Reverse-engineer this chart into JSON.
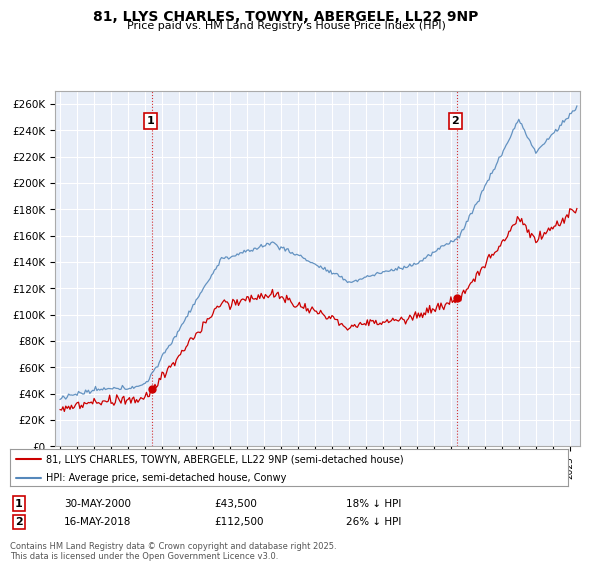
{
  "title": "81, LLYS CHARLES, TOWYN, ABERGELE, LL22 9NP",
  "subtitle": "Price paid vs. HM Land Registry's House Price Index (HPI)",
  "ylim": [
    0,
    270000
  ],
  "yticks": [
    0,
    20000,
    40000,
    60000,
    80000,
    100000,
    120000,
    140000,
    160000,
    180000,
    200000,
    220000,
    240000,
    260000
  ],
  "ytick_labels": [
    "£0",
    "£20K",
    "£40K",
    "£60K",
    "£80K",
    "£100K",
    "£120K",
    "£140K",
    "£160K",
    "£180K",
    "£200K",
    "£220K",
    "£240K",
    "£260K"
  ],
  "hpi_color": "#5588bb",
  "price_color": "#cc0000",
  "marker_color": "#cc0000",
  "vline_color": "#cc0000",
  "annotation_box_color": "#cc0000",
  "sale1_year": 2000.41,
  "sale1_price": 43500,
  "sale1_label": "1",
  "sale2_year": 2018.37,
  "sale2_price": 112500,
  "sale2_label": "2",
  "legend_line1": "81, LLYS CHARLES, TOWYN, ABERGELE, LL22 9NP (semi-detached house)",
  "legend_line2": "HPI: Average price, semi-detached house, Conwy",
  "footnote": "Contains HM Land Registry data © Crown copyright and database right 2025.\nThis data is licensed under the Open Government Licence v3.0.",
  "table_row1": [
    "1",
    "30-MAY-2000",
    "£43,500",
    "18% ↓ HPI"
  ],
  "table_row2": [
    "2",
    "16-MAY-2018",
    "£112,500",
    "26% ↓ HPI"
  ],
  "background_color": "#ffffff",
  "chart_bg_color": "#e8eef8",
  "grid_color": "#ffffff"
}
